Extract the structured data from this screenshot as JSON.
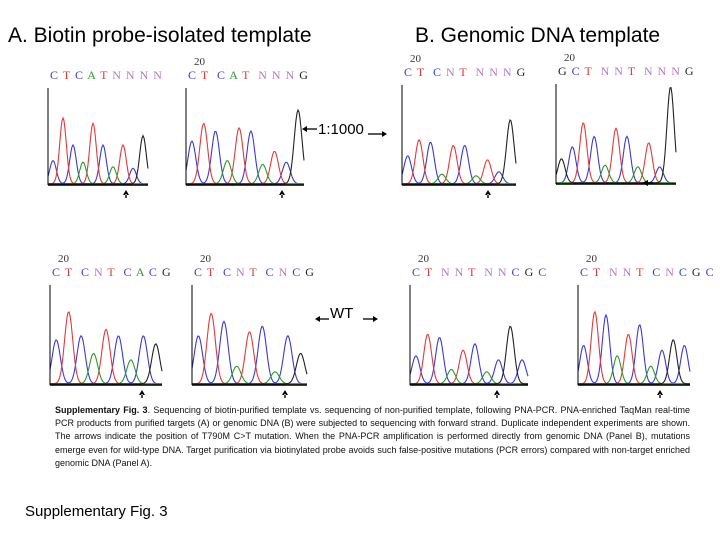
{
  "titles": {
    "a": "A. Biotin probe-isolated template",
    "b": "B. Genomic DNA template"
  },
  "labels": {
    "dilution": "1:1000",
    "wt": "WT"
  },
  "base_colors": {
    "C": "#3a3ad6",
    "T": "#e23a3a",
    "A": "#2c9a2c",
    "G": "#222222",
    "N": "#b678c8"
  },
  "panels": [
    {
      "id": "a-1000-1",
      "position_label": "",
      "sequence": "C T C A T N N N N",
      "peaks": [
        [
          "C",
          0.3
        ],
        [
          "T",
          0.85
        ],
        [
          "C",
          0.5
        ],
        [
          "A",
          0.28
        ],
        [
          "T",
          0.78
        ],
        [
          "C",
          0.5
        ],
        [
          "A",
          0.22
        ],
        [
          "T",
          0.5
        ],
        [
          "C",
          0.2
        ],
        [
          "G",
          0.62
        ]
      ]
    },
    {
      "id": "a-1000-2",
      "position_label": "20",
      "sequence": "C T  C A T  N N N G",
      "peaks": [
        [
          "C",
          0.55
        ],
        [
          "T",
          0.78
        ],
        [
          "C",
          0.68
        ],
        [
          "A",
          0.3
        ],
        [
          "T",
          0.72
        ],
        [
          "C",
          0.68
        ],
        [
          "A",
          0.25
        ],
        [
          "T",
          0.42
        ],
        [
          "C",
          0.28
        ],
        [
          "G",
          0.95
        ]
      ]
    },
    {
      "id": "b-1000-1",
      "position_label": "20",
      "sequence": "C T  C N T  N N N G",
      "peaks": [
        [
          "C",
          0.35
        ],
        [
          "T",
          0.55
        ],
        [
          "C",
          0.52
        ],
        [
          "A",
          0.12
        ],
        [
          "T",
          0.48
        ],
        [
          "C",
          0.48
        ],
        [
          "A",
          0.1
        ],
        [
          "T",
          0.3
        ],
        [
          "C",
          0.15
        ],
        [
          "G",
          0.8
        ]
      ]
    },
    {
      "id": "b-1000-2",
      "position_label": "20",
      "sequence": "G C T  N N T  N N N G",
      "peaks": [
        [
          "G",
          0.3
        ],
        [
          "C",
          0.45
        ],
        [
          "T",
          0.75
        ],
        [
          "C",
          0.58
        ],
        [
          "A",
          0.22
        ],
        [
          "T",
          0.68
        ],
        [
          "C",
          0.58
        ],
        [
          "A",
          0.2
        ],
        [
          "T",
          0.5
        ],
        [
          "C",
          0.2
        ],
        [
          "G",
          1.2
        ]
      ]
    },
    {
      "id": "a-wt-1",
      "position_label": "20",
      "sequence": "C T  C N T  C A C G",
      "peaks": [
        [
          "C",
          0.55
        ],
        [
          "T",
          0.9
        ],
        [
          "C",
          0.6
        ],
        [
          "A",
          0.38
        ],
        [
          "T",
          0.68
        ],
        [
          "C",
          0.6
        ],
        [
          "A",
          0.3
        ],
        [
          "C",
          0.6
        ],
        [
          "G",
          0.5
        ]
      ]
    },
    {
      "id": "a-wt-2",
      "position_label": "20",
      "sequence": "C T  C N T  C N C G",
      "peaks": [
        [
          "C",
          0.6
        ],
        [
          "T",
          0.88
        ],
        [
          "C",
          0.78
        ],
        [
          "A",
          0.22
        ],
        [
          "T",
          0.65
        ],
        [
          "C",
          0.72
        ],
        [
          "A",
          0.15
        ],
        [
          "C",
          0.6
        ],
        [
          "G",
          0.38
        ]
      ]
    },
    {
      "id": "b-wt-1",
      "position_label": "20",
      "sequence": "C T  N N T  N N C G C",
      "peaks": [
        [
          "C",
          0.35
        ],
        [
          "T",
          0.62
        ],
        [
          "C",
          0.58
        ],
        [
          "A",
          0.18
        ],
        [
          "T",
          0.42
        ],
        [
          "C",
          0.5
        ],
        [
          "A",
          0.15
        ],
        [
          "C",
          0.3
        ],
        [
          "G",
          0.72
        ],
        [
          "C",
          0.3
        ]
      ]
    },
    {
      "id": "b-wt-2",
      "position_label": "20",
      "sequence": "C T  N N T  C N C G C",
      "peaks": [
        [
          "C",
          0.48
        ],
        [
          "T",
          0.9
        ],
        [
          "C",
          0.86
        ],
        [
          "A",
          0.35
        ],
        [
          "T",
          0.62
        ],
        [
          "C",
          0.74
        ],
        [
          "A",
          0.22
        ],
        [
          "C",
          0.42
        ],
        [
          "G",
          0.55
        ],
        [
          "C",
          0.48
        ]
      ]
    }
  ],
  "caption": {
    "label": "Supplementary Fig. 3",
    "text": ". Sequencing of biotin-purified template vs. sequencing of non-purified template, following PNA-PCR. PNA-enriched TaqMan real-time PCR products from purified targets (A) or genomic DNA (B) were subjected to sequencing with forward strand. Duplicate independent experiments are shown. The arrows indicate the position of T790M C>T mutation. When the PNA-PCR amplification is performed directly from genomic DNA (Panel B), mutations emerge even for wild-type DNA. Target purification via biotinylated probe avoids such false-positive mutations (PCR errors) compared with non-target enriched genomic DNA (Panel A)."
  },
  "footer": "Supplementary Fig. 3"
}
